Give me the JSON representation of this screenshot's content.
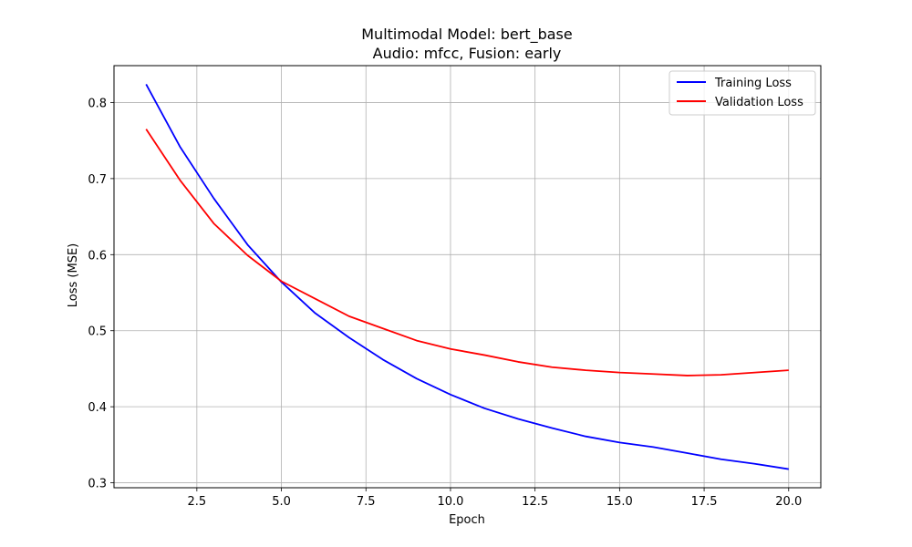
{
  "chart_data": {
    "type": "line",
    "title": "Multimodal Model: bert_base",
    "subtitle": "Audio: mfcc, Fusion: early",
    "xlabel": "Epoch",
    "ylabel": "Loss (MSE)",
    "xlim": [
      0.05,
      20.95
    ],
    "ylim": [
      0.2935,
      0.8485
    ],
    "xticks": [
      2.5,
      5.0,
      7.5,
      10.0,
      12.5,
      15.0,
      17.5,
      20.0
    ],
    "xtick_labels": [
      "2.5",
      "5.0",
      "7.5",
      "10.0",
      "12.5",
      "15.0",
      "17.5",
      "20.0"
    ],
    "yticks": [
      0.3,
      0.4,
      0.5,
      0.6,
      0.7,
      0.8
    ],
    "ytick_labels": [
      "0.3",
      "0.4",
      "0.5",
      "0.6",
      "0.7",
      "0.8"
    ],
    "grid": true,
    "legend_position": "top-right",
    "x": [
      1,
      2,
      3,
      4,
      5,
      6,
      7,
      8,
      9,
      10,
      11,
      12,
      13,
      14,
      15,
      16,
      17,
      18,
      19,
      20
    ],
    "series": [
      {
        "name": "Training Loss",
        "color": "#0000ff",
        "values": [
          0.824,
          0.742,
          0.674,
          0.613,
          0.564,
          0.523,
          0.491,
          0.462,
          0.437,
          0.416,
          0.398,
          0.384,
          0.372,
          0.361,
          0.353,
          0.347,
          0.339,
          0.331,
          0.325,
          0.318
        ]
      },
      {
        "name": "Validation Loss",
        "color": "#ff0000",
        "values": [
          0.765,
          0.698,
          0.641,
          0.599,
          0.565,
          0.542,
          0.519,
          0.503,
          0.487,
          0.476,
          0.468,
          0.459,
          0.452,
          0.448,
          0.445,
          0.443,
          0.441,
          0.442,
          0.445,
          0.448
        ]
      }
    ]
  }
}
